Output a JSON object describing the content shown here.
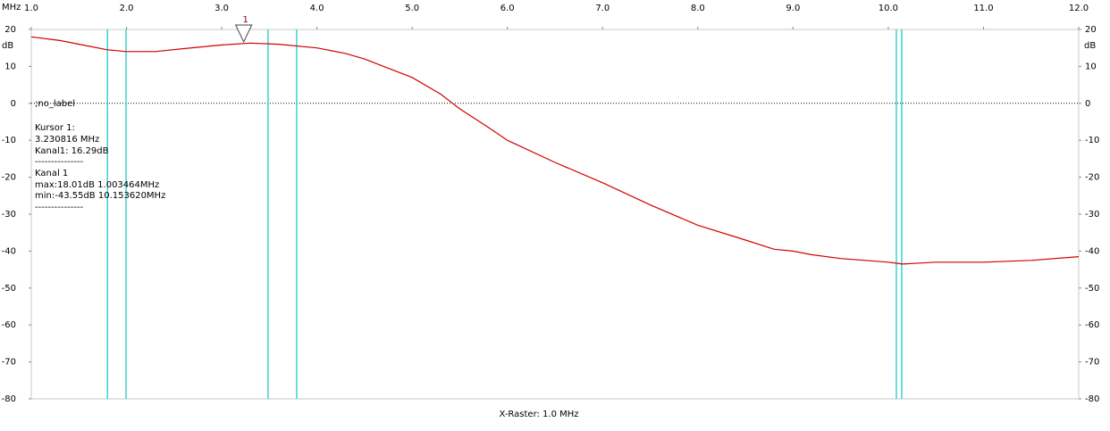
{
  "chart_data": {
    "type": "line",
    "x_unit_label": "MHz",
    "y_unit_label": "dB",
    "xlim": [
      1,
      12
    ],
    "xticks": [
      {
        "value": 1,
        "label": "1.0"
      },
      {
        "value": 2,
        "label": "2.0"
      },
      {
        "value": 3,
        "label": "3.0"
      },
      {
        "value": 4,
        "label": "4.0"
      },
      {
        "value": 5,
        "label": "5.0"
      },
      {
        "value": 6,
        "label": "6.0"
      },
      {
        "value": 7,
        "label": "7.0"
      },
      {
        "value": 8,
        "label": "8.0"
      },
      {
        "value": 9,
        "label": "9.0"
      },
      {
        "value": 10,
        "label": "10.0"
      },
      {
        "value": 11,
        "label": "11.0"
      },
      {
        "value": 12,
        "label": "12.0"
      }
    ],
    "ylim": [
      -80,
      20
    ],
    "yticks": [
      20,
      10,
      0,
      -10,
      -20,
      -30,
      -40,
      -50,
      -60,
      -70,
      -80
    ],
    "zero_line": true,
    "series": [
      {
        "color": "#d00000",
        "x": [
          1.0,
          1.3,
          1.6,
          1.8,
          2.0,
          2.3,
          2.6,
          3.0,
          3.3,
          3.6,
          4.0,
          4.3,
          4.5,
          4.7,
          5.0,
          5.3,
          5.5,
          5.8,
          6.0,
          6.5,
          7.0,
          7.5,
          8.0,
          8.5,
          8.8,
          9.0,
          9.2,
          9.5,
          10.0,
          10.15,
          10.5,
          11.0,
          11.5,
          12.0
        ],
        "values": [
          18,
          17,
          15.5,
          14.5,
          14,
          14,
          14.8,
          15.8,
          16.3,
          16,
          15,
          13.5,
          12,
          10,
          7,
          2.5,
          -1.5,
          -6.5,
          -10,
          -16,
          -21.5,
          -27.5,
          -33,
          -37,
          -39.5,
          -40,
          -41,
          -42,
          -43,
          -43.5,
          -43,
          -43,
          -42.5,
          -41.5
        ]
      }
    ],
    "marker_lines": {
      "color": "#40d0d0",
      "x": [
        1.8,
        1.995,
        3.487,
        3.787,
        10.085,
        10.141
      ]
    },
    "cursor": {
      "x": 3.230816,
      "label": "1"
    },
    "annotations": [
      ";no_label",
      "Kursor 1:",
      "3.230816 MHz",
      "Kanal1: 16.29dB",
      "---------------",
      "Kanal 1",
      "max:18.01dB 1.003464MHz",
      "min:-43.55dB 10.153620MHz",
      "---------------"
    ],
    "x_raster": "X-Raster: 1.0 MHz"
  }
}
